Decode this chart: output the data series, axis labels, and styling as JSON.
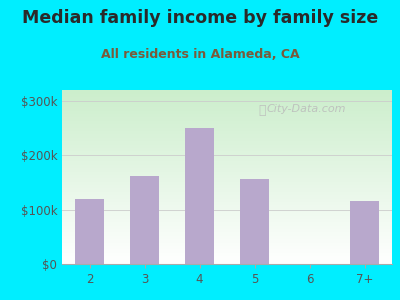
{
  "categories": [
    "2",
    "3",
    "4",
    "5",
    "6",
    "7+"
  ],
  "values": [
    120000,
    162000,
    250000,
    157000,
    0,
    115000
  ],
  "bar_color": "#b8a8cc",
  "title": "Median family income by family size",
  "subtitle": "All residents in Alameda, CA",
  "title_color": "#2a2a2a",
  "subtitle_color": "#7a5a3a",
  "background_color": "#00eeff",
  "ylabel_ticks": [
    0,
    100000,
    200000,
    300000
  ],
  "ylabel_labels": [
    "$0",
    "$100k",
    "$200k",
    "$300k"
  ],
  "ylim": [
    0,
    320000
  ],
  "watermark": "City-Data.com",
  "title_fontsize": 12.5,
  "subtitle_fontsize": 9.0
}
